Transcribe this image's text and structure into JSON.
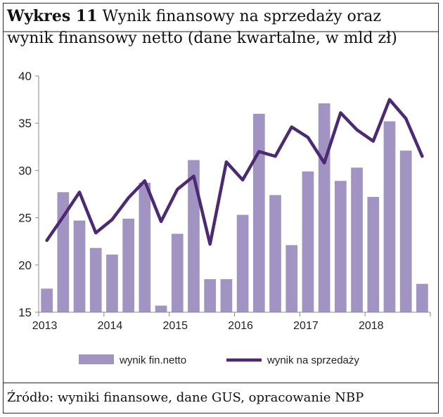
{
  "title_bold": "Wykres 11",
  "title_rest": " Wynik finansowy na sprzedaży oraz",
  "title_line2": "wynik finansowy netto (dane kwartalne, w mld zł)",
  "source": "Źródło: wyniki finansowe, dane GUS, opracowanie NBP",
  "colors": {
    "bar": "#a294c2",
    "line": "#4b2a73",
    "axis": "#888888"
  },
  "chart_data": {
    "type": "bar",
    "title": "Wykres 11 Wynik finansowy na sprzedaży oraz wynik finansowy netto (dane kwartalne, w mld zł)",
    "xlabel": "",
    "ylabel": "",
    "ylim": [
      15,
      40
    ],
    "yticks": [
      15,
      20,
      25,
      30,
      35,
      40
    ],
    "x_tick_labels": [
      "2013",
      "2014",
      "2015",
      "2016",
      "2017",
      "2018"
    ],
    "categories": [
      "2013Q1",
      "2013Q2",
      "2013Q3",
      "2013Q4",
      "2014Q1",
      "2014Q2",
      "2014Q3",
      "2014Q4",
      "2015Q1",
      "2015Q2",
      "2015Q3",
      "2015Q4",
      "2016Q1",
      "2016Q2",
      "2016Q3",
      "2016Q4",
      "2017Q1",
      "2017Q2",
      "2017Q3",
      "2017Q4",
      "2018Q1",
      "2018Q2",
      "2018Q3",
      "2018Q4"
    ],
    "grid": false,
    "legend": "bottom",
    "series": [
      {
        "name": "wynik fin.netto",
        "type": "bar",
        "values": [
          17.5,
          27.7,
          24.7,
          21.8,
          21.1,
          24.9,
          28.7,
          15.7,
          23.3,
          31.1,
          18.5,
          18.5,
          25.3,
          36.0,
          27.4,
          22.1,
          29.9,
          37.1,
          28.9,
          30.3,
          27.2,
          35.2,
          32.1,
          18.0
        ]
      },
      {
        "name": "wynik na sprzedaży",
        "type": "line",
        "values": [
          22.6,
          25.1,
          27.7,
          23.4,
          24.8,
          27.1,
          28.9,
          24.6,
          28.0,
          29.4,
          22.2,
          30.9,
          29.0,
          32.0,
          31.5,
          34.6,
          33.5,
          30.8,
          36.1,
          34.3,
          33.1,
          37.5,
          35.5,
          31.5
        ]
      }
    ]
  }
}
